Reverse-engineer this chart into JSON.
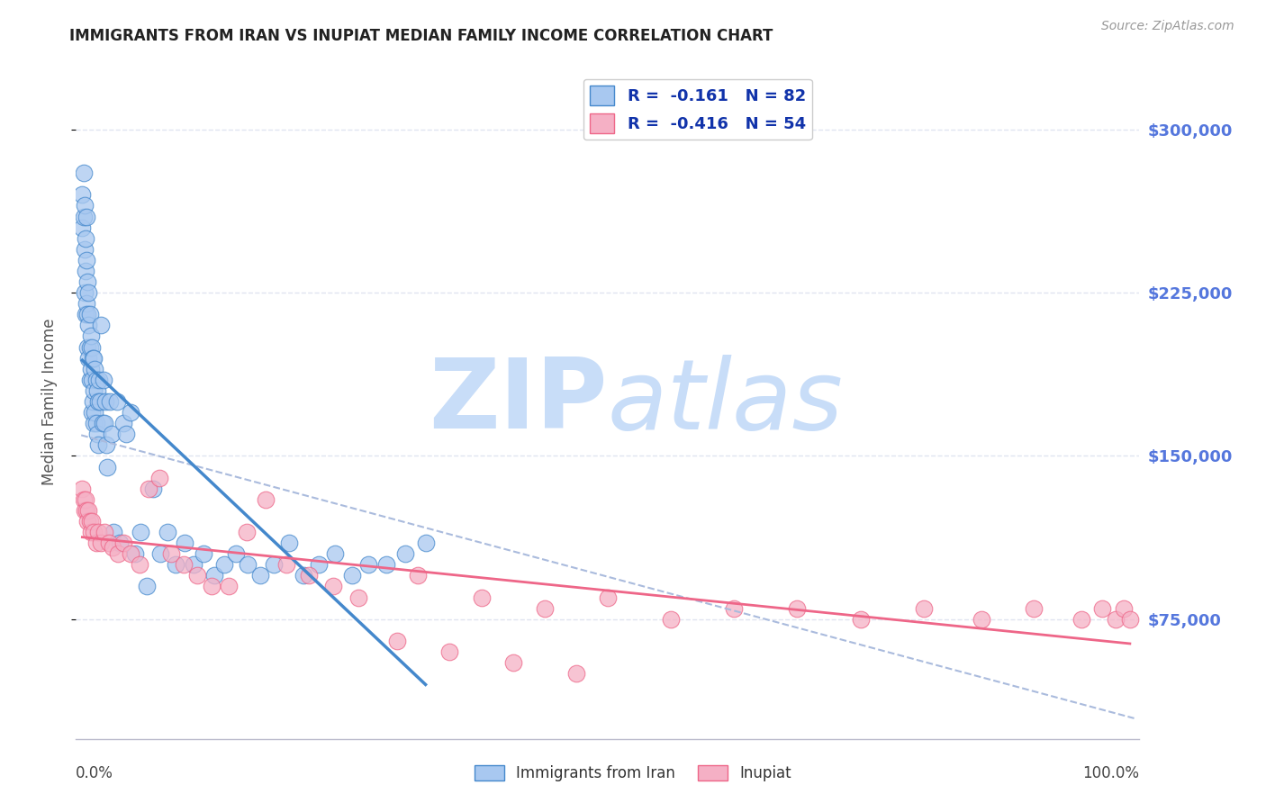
{
  "title": "IMMIGRANTS FROM IRAN VS INUPIAT MEDIAN FAMILY INCOME CORRELATION CHART",
  "source": "Source: ZipAtlas.com",
  "ylabel": "Median Family Income",
  "right_ytick_labels": [
    "$75,000",
    "$150,000",
    "$225,000",
    "$300,000"
  ],
  "right_ytick_values": [
    75000,
    150000,
    225000,
    300000
  ],
  "ylim": [
    20000,
    330000
  ],
  "xlim": [
    -0.005,
    1.005
  ],
  "legend_iran_R": "-0.161",
  "legend_iran_N": "82",
  "legend_inupiat_R": "-0.416",
  "legend_inupiat_N": "54",
  "color_iran": "#a8c8f0",
  "color_inupiat": "#f5b0c5",
  "color_iran_line": "#4488cc",
  "color_inupiat_line": "#ee6688",
  "color_dashed_line": "#aabbdd",
  "color_right_ticks": "#5577dd",
  "color_grid": "#e0e4f0",
  "background_color": "#ffffff",
  "watermark_zip": "ZIP",
  "watermark_atlas": "atlas",
  "watermark_color": "#ddeeff",
  "iran_x": [
    0.001,
    0.001,
    0.002,
    0.002,
    0.003,
    0.003,
    0.003,
    0.004,
    0.004,
    0.004,
    0.005,
    0.005,
    0.005,
    0.006,
    0.006,
    0.006,
    0.007,
    0.007,
    0.007,
    0.008,
    0.008,
    0.008,
    0.009,
    0.009,
    0.01,
    0.01,
    0.01,
    0.011,
    0.011,
    0.012,
    0.012,
    0.012,
    0.013,
    0.013,
    0.014,
    0.014,
    0.015,
    0.015,
    0.016,
    0.016,
    0.017,
    0.018,
    0.019,
    0.02,
    0.021,
    0.022,
    0.023,
    0.024,
    0.025,
    0.027,
    0.029,
    0.031,
    0.034,
    0.037,
    0.04,
    0.043,
    0.047,
    0.051,
    0.056,
    0.062,
    0.068,
    0.075,
    0.082,
    0.09,
    0.098,
    0.107,
    0.116,
    0.126,
    0.136,
    0.147,
    0.158,
    0.17,
    0.183,
    0.197,
    0.211,
    0.226,
    0.241,
    0.257,
    0.273,
    0.29,
    0.308,
    0.327
  ],
  "iran_y": [
    270000,
    255000,
    280000,
    260000,
    265000,
    245000,
    225000,
    250000,
    235000,
    215000,
    260000,
    240000,
    220000,
    230000,
    215000,
    200000,
    225000,
    210000,
    195000,
    215000,
    200000,
    185000,
    205000,
    190000,
    200000,
    185000,
    170000,
    195000,
    175000,
    195000,
    180000,
    165000,
    190000,
    170000,
    185000,
    165000,
    180000,
    160000,
    175000,
    155000,
    185000,
    175000,
    210000,
    165000,
    185000,
    165000,
    175000,
    155000,
    145000,
    175000,
    160000,
    115000,
    175000,
    110000,
    165000,
    160000,
    170000,
    105000,
    115000,
    90000,
    135000,
    105000,
    115000,
    100000,
    110000,
    100000,
    105000,
    95000,
    100000,
    105000,
    100000,
    95000,
    100000,
    110000,
    95000,
    100000,
    105000,
    95000,
    100000,
    100000,
    105000,
    110000
  ],
  "inupiat_x": [
    0.001,
    0.002,
    0.003,
    0.004,
    0.005,
    0.006,
    0.007,
    0.008,
    0.009,
    0.01,
    0.012,
    0.014,
    0.016,
    0.019,
    0.022,
    0.026,
    0.03,
    0.035,
    0.04,
    0.047,
    0.055,
    0.064,
    0.074,
    0.085,
    0.097,
    0.11,
    0.124,
    0.14,
    0.157,
    0.175,
    0.195,
    0.216,
    0.239,
    0.263,
    0.32,
    0.38,
    0.44,
    0.5,
    0.56,
    0.62,
    0.68,
    0.74,
    0.8,
    0.855,
    0.905,
    0.95,
    0.97,
    0.982,
    0.99,
    0.996,
    0.3,
    0.35,
    0.41,
    0.47
  ],
  "inupiat_y": [
    135000,
    130000,
    125000,
    130000,
    125000,
    120000,
    125000,
    120000,
    115000,
    120000,
    115000,
    110000,
    115000,
    110000,
    115000,
    110000,
    108000,
    105000,
    110000,
    105000,
    100000,
    135000,
    140000,
    105000,
    100000,
    95000,
    90000,
    90000,
    115000,
    130000,
    100000,
    95000,
    90000,
    85000,
    95000,
    85000,
    80000,
    85000,
    75000,
    80000,
    80000,
    75000,
    80000,
    75000,
    80000,
    75000,
    80000,
    75000,
    80000,
    75000,
    65000,
    60000,
    55000,
    50000
  ]
}
